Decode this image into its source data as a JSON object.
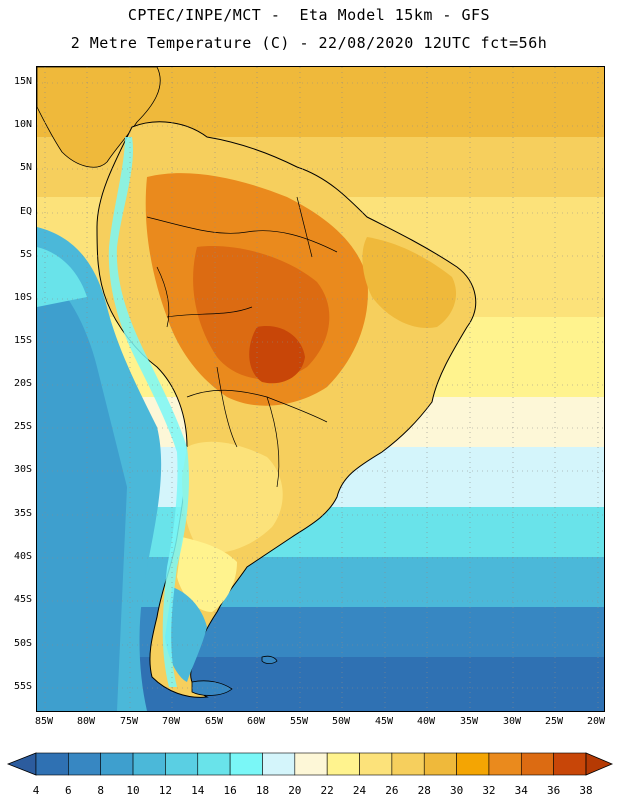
{
  "header": {
    "title_line1": "CPTEC/INPE/MCT -  Eta Model 15km - GFS",
    "title_line2": "2 Metre Temperature (C) - 22/08/2020 12UTC fct=56h"
  },
  "axes": {
    "lat_labels": [
      "15N",
      "10N",
      "5N",
      "EQ",
      "5S",
      "10S",
      "15S",
      "20S",
      "25S",
      "30S",
      "35S",
      "40S",
      "45S",
      "50S",
      "55S"
    ],
    "lon_labels": [
      "85W",
      "80W",
      "75W",
      "70W",
      "65W",
      "60W",
      "55W",
      "50W",
      "45W",
      "40W",
      "35W",
      "30W",
      "25W",
      "20W"
    ]
  },
  "legend": {
    "unit": "C",
    "values": [
      "4",
      "6",
      "8",
      "10",
      "12",
      "14",
      "16",
      "18",
      "20",
      "22",
      "24",
      "26",
      "28",
      "30",
      "32",
      "34",
      "36",
      "38"
    ],
    "colors": [
      "#2c5c9e",
      "#2f71b3",
      "#3787c2",
      "#3e9fce",
      "#4bb8d9",
      "#5acfe3",
      "#69e3ea",
      "#7af7f7",
      "#d4f5fb",
      "#fdf7d7",
      "#fff38e",
      "#fce27a",
      "#f6cf5d",
      "#efb93b",
      "#f4a503",
      "#ea8a1d",
      "#dc6b12",
      "#c84608",
      "#b53a04"
    ]
  }
}
